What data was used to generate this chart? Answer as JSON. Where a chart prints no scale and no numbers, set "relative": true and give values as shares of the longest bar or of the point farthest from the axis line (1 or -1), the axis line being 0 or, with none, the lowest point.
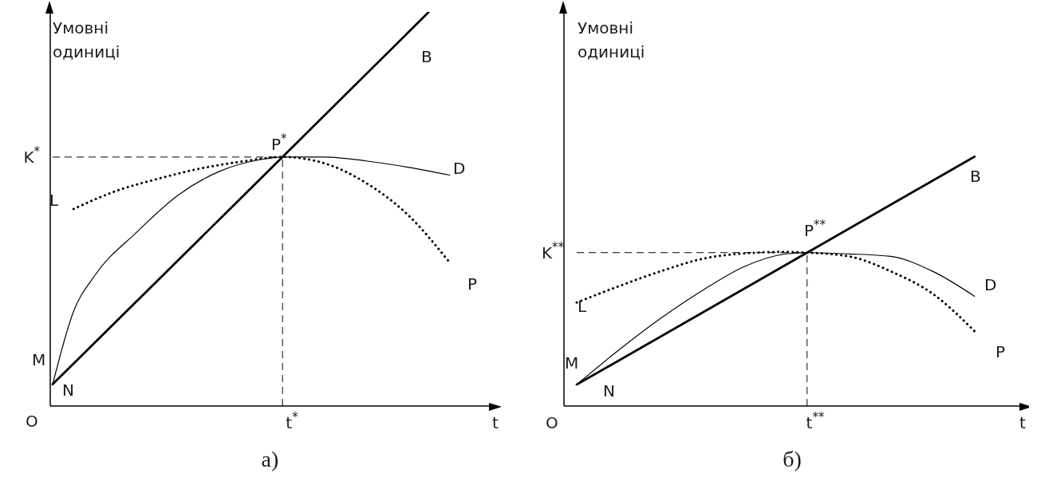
{
  "chart_data": [
    {
      "type": "line",
      "title": "а)",
      "xlabel": "t",
      "ylabel": "Умовні одиниці",
      "relative": true,
      "categories": [
        null,
        null,
        null,
        null,
        null,
        null,
        null,
        null,
        null,
        null,
        null,
        null,
        null,
        null,
        null,
        null,
        null,
        null,
        null,
        null,
        null
      ],
      "series": [
        {
          "name": "B",
          "color": "#000000",
          "line_style": "solid",
          "values": [
            0.055,
            null,
            null,
            null,
            null,
            null,
            null,
            null,
            null,
            null,
            null,
            0.632,
            null,
            null,
            null,
            null,
            null,
            null,
            1,
            null,
            null
          ]
        },
        {
          "name": "D",
          "color": "#000000",
          "line_style": "solid",
          "values": [
            0.055,
            0.24,
            0.33,
            null,
            0.44,
            null,
            0.535,
            null,
            0.596,
            null,
            0.626,
            0.632,
            null,
            0.632,
            null,
            0.622,
            null,
            0.606,
            null,
            0.586,
            null
          ]
        },
        {
          "name": "P",
          "color": "#000000",
          "line_style": "dotted",
          "values": [
            null,
            0.5,
            null,
            0.545,
            null,
            0.576,
            null,
            0.602,
            null,
            0.62,
            null,
            0.632,
            null,
            0.616,
            null,
            0.566,
            null,
            0.485,
            null,
            0.364,
            null
          ]
        }
      ],
      "ref_lines": [
        {
          "axis": "y",
          "value": 0.632,
          "label": "K$^{*}$",
          "line_style": "dashed"
        }
      ],
      "annotations": [
        "O",
        "N",
        "M",
        "L",
        "P$^{*}$",
        "t$^{*}$"
      ]
    },
    {
      "type": "line",
      "title": "б)",
      "xlabel": "t",
      "ylabel": "Умовні одиниці",
      "relative": true,
      "categories": [
        null,
        null,
        null,
        null,
        null,
        null,
        null,
        null,
        null,
        null,
        null,
        null,
        null,
        null,
        null,
        null,
        null,
        null,
        null,
        null,
        null
      ],
      "series": [
        {
          "name": "B",
          "color": "#000000",
          "line_style": "solid",
          "values": [
            0.086,
            null,
            null,
            null,
            null,
            null,
            null,
            null,
            null,
            null,
            null,
            0.615,
            null,
            null,
            null,
            null,
            null,
            null,
            null,
            1,
            null
          ]
        },
        {
          "name": "D",
          "color": "#000000",
          "line_style": "solid",
          "values": [
            0.086,
            null,
            0.224,
            null,
            0.351,
            null,
            0.463,
            null,
            0.559,
            null,
            0.61,
            0.615,
            null,
            0.61,
            null,
            0.6,
            null,
            0.54,
            null,
            0.44,
            null
          ]
        },
        {
          "name": "P",
          "color": "#000000",
          "line_style": "dotted",
          "values": [
            0.415,
            null,
            0.48,
            null,
            0.54,
            null,
            0.59,
            null,
            0.612,
            null,
            0.618,
            0.615,
            null,
            0.6,
            null,
            0.54,
            null,
            0.45,
            null,
            0.3,
            null
          ]
        }
      ],
      "ref_lines": [
        {
          "axis": "y",
          "value": 0.615,
          "label": "K$^{**}$",
          "line_style": "dashed"
        }
      ],
      "annotations": [
        "O",
        "N",
        "M",
        "L",
        "P$^{**}$",
        "t$^{**}$"
      ]
    }
  ]
}
